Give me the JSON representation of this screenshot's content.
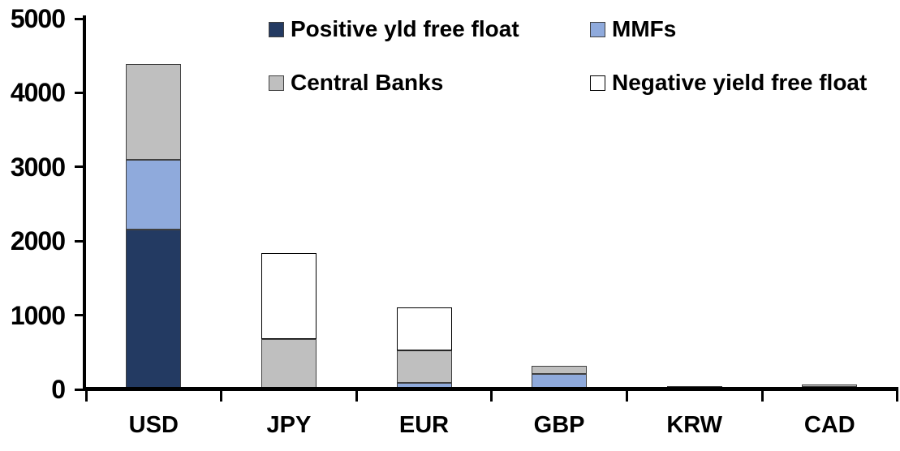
{
  "chart_data": {
    "type": "bar",
    "stacked": true,
    "title": "",
    "xlabel": "",
    "ylabel": "",
    "categories": [
      "USD",
      "JPY",
      "EUR",
      "GBP",
      "KRW",
      "CAD"
    ],
    "series": [
      {
        "name": "Positive yld free float",
        "color": "#233a62",
        "border": "#404040",
        "values": [
          2150,
          0,
          0,
          0,
          45,
          30
        ]
      },
      {
        "name": "MMFs",
        "color": "#8faadc",
        "border": "#404040",
        "values": [
          950,
          0,
          90,
          205,
          0,
          0
        ]
      },
      {
        "name": "Central Banks",
        "color": "#bfbfbf",
        "border": "#404040",
        "values": [
          1290,
          680,
          435,
          110,
          0,
          40
        ]
      },
      {
        "name": "Negative yield free float",
        "color": "#ffffff",
        "border": "#000000",
        "values": [
          0,
          1155,
          580,
          0,
          0,
          0
        ]
      }
    ],
    "ylim": [
      0,
      5000
    ],
    "yticks": [
      0,
      1000,
      2000,
      3000,
      4000,
      5000
    ],
    "ytick_labels": [
      "0",
      "1000",
      "2000",
      "3000",
      "4000",
      "5000"
    ],
    "grid": false,
    "legend_position": "top",
    "legend_rows": [
      [
        "Positive yld free float",
        "MMFs"
      ],
      [
        "Central Banks",
        "Negative yield free float"
      ]
    ],
    "axis_color": "#000000",
    "text_color": "#000000",
    "background_color": "#ffffff"
  }
}
